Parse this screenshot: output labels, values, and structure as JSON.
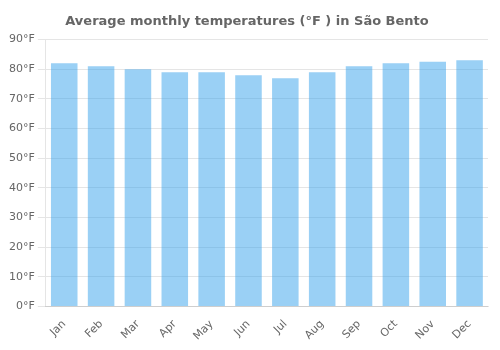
{
  "chart_data": {
    "type": "bar",
    "title": "Average monthly temperatures (°F ) in São Bento",
    "categories": [
      "Jan",
      "Feb",
      "Mar",
      "Apr",
      "May",
      "Jun",
      "Jul",
      "Aug",
      "Sep",
      "Oct",
      "Nov",
      "Dec"
    ],
    "values": [
      82,
      81,
      80,
      79,
      79,
      78,
      77,
      79,
      81,
      82,
      82.5,
      83
    ],
    "ylim": [
      0,
      90
    ],
    "yticks": [
      {
        "value": 0,
        "label": "0°F"
      },
      {
        "value": 10,
        "label": "10°F"
      },
      {
        "value": 20,
        "label": "20°F"
      },
      {
        "value": 30,
        "label": "30°F"
      },
      {
        "value": 40,
        "label": "40°F"
      },
      {
        "value": 50,
        "label": "50°F"
      },
      {
        "value": 60,
        "label": "60°F"
      },
      {
        "value": 70,
        "label": "70°F"
      },
      {
        "value": 80,
        "label": "80°F"
      },
      {
        "value": 90,
        "label": "90°F"
      }
    ],
    "grid": true
  }
}
